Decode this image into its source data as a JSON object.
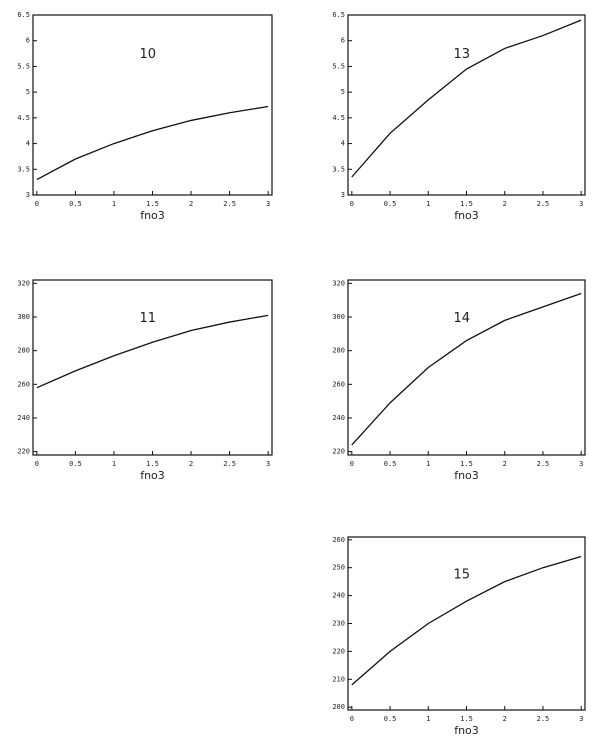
{
  "chart_data": [
    {
      "type": "line",
      "title": "10",
      "xlabel": "fno3",
      "x": [
        0,
        0.5,
        1,
        1.5,
        2,
        2.5,
        3
      ],
      "values": [
        3.3,
        3.7,
        4.0,
        4.25,
        4.45,
        4.6,
        4.72
      ],
      "color": "#111111",
      "xlim": [
        -0.05,
        3.05
      ],
      "xticks": [
        0,
        0.5,
        1,
        1.5,
        2,
        2.5,
        3
      ],
      "ylim": [
        3,
        6.5
      ],
      "yticks": [
        3,
        3.5,
        4,
        4.5,
        5,
        5.5,
        6,
        6.5
      ]
    },
    {
      "type": "line",
      "title": "13",
      "xlabel": "fno3",
      "x": [
        0,
        0.5,
        1,
        1.5,
        2,
        2.5,
        3
      ],
      "values": [
        3.35,
        4.2,
        4.85,
        5.45,
        5.85,
        6.1,
        6.4
      ],
      "color": "#111111",
      "xlim": [
        -0.05,
        3.05
      ],
      "xticks": [
        0,
        0.5,
        1,
        1.5,
        2,
        2.5,
        3
      ],
      "ylim": [
        3,
        6.5
      ],
      "yticks": [
        3,
        3.5,
        4,
        4.5,
        5,
        5.5,
        6,
        6.5
      ]
    },
    {
      "type": "line",
      "title": "11",
      "xlabel": "fno3",
      "x": [
        0,
        0.5,
        1,
        1.5,
        2,
        2.5,
        3
      ],
      "values": [
        258,
        268,
        277,
        285,
        292,
        297,
        301
      ],
      "color": "#111111",
      "xlim": [
        -0.05,
        3.05
      ],
      "xticks": [
        0,
        0.5,
        1,
        1.5,
        2,
        2.5,
        3
      ],
      "ylim": [
        218,
        322
      ],
      "yticks": [
        220,
        240,
        260,
        280,
        300,
        320
      ]
    },
    {
      "type": "line",
      "title": "14",
      "xlabel": "fno3",
      "x": [
        0,
        0.5,
        1,
        1.5,
        2,
        2.5,
        3
      ],
      "values": [
        224,
        249,
        270,
        286,
        298,
        306,
        314
      ],
      "color": "#111111",
      "xlim": [
        -0.05,
        3.05
      ],
      "xticks": [
        0,
        0.5,
        1,
        1.5,
        2,
        2.5,
        3
      ],
      "ylim": [
        218,
        322
      ],
      "yticks": [
        220,
        240,
        260,
        280,
        300,
        320
      ]
    },
    {
      "type": "line",
      "title": "15",
      "xlabel": "fno3",
      "x": [
        0,
        0.5,
        1,
        1.5,
        2,
        2.5,
        3
      ],
      "values": [
        208,
        220,
        230,
        238,
        245,
        250,
        254
      ],
      "color": "#111111",
      "xlim": [
        -0.05,
        3.05
      ],
      "xticks": [
        0,
        0.5,
        1,
        1.5,
        2,
        2.5,
        3
      ],
      "ylim": [
        199,
        261
      ],
      "yticks": [
        200,
        210,
        220,
        230,
        240,
        250,
        260
      ]
    }
  ]
}
